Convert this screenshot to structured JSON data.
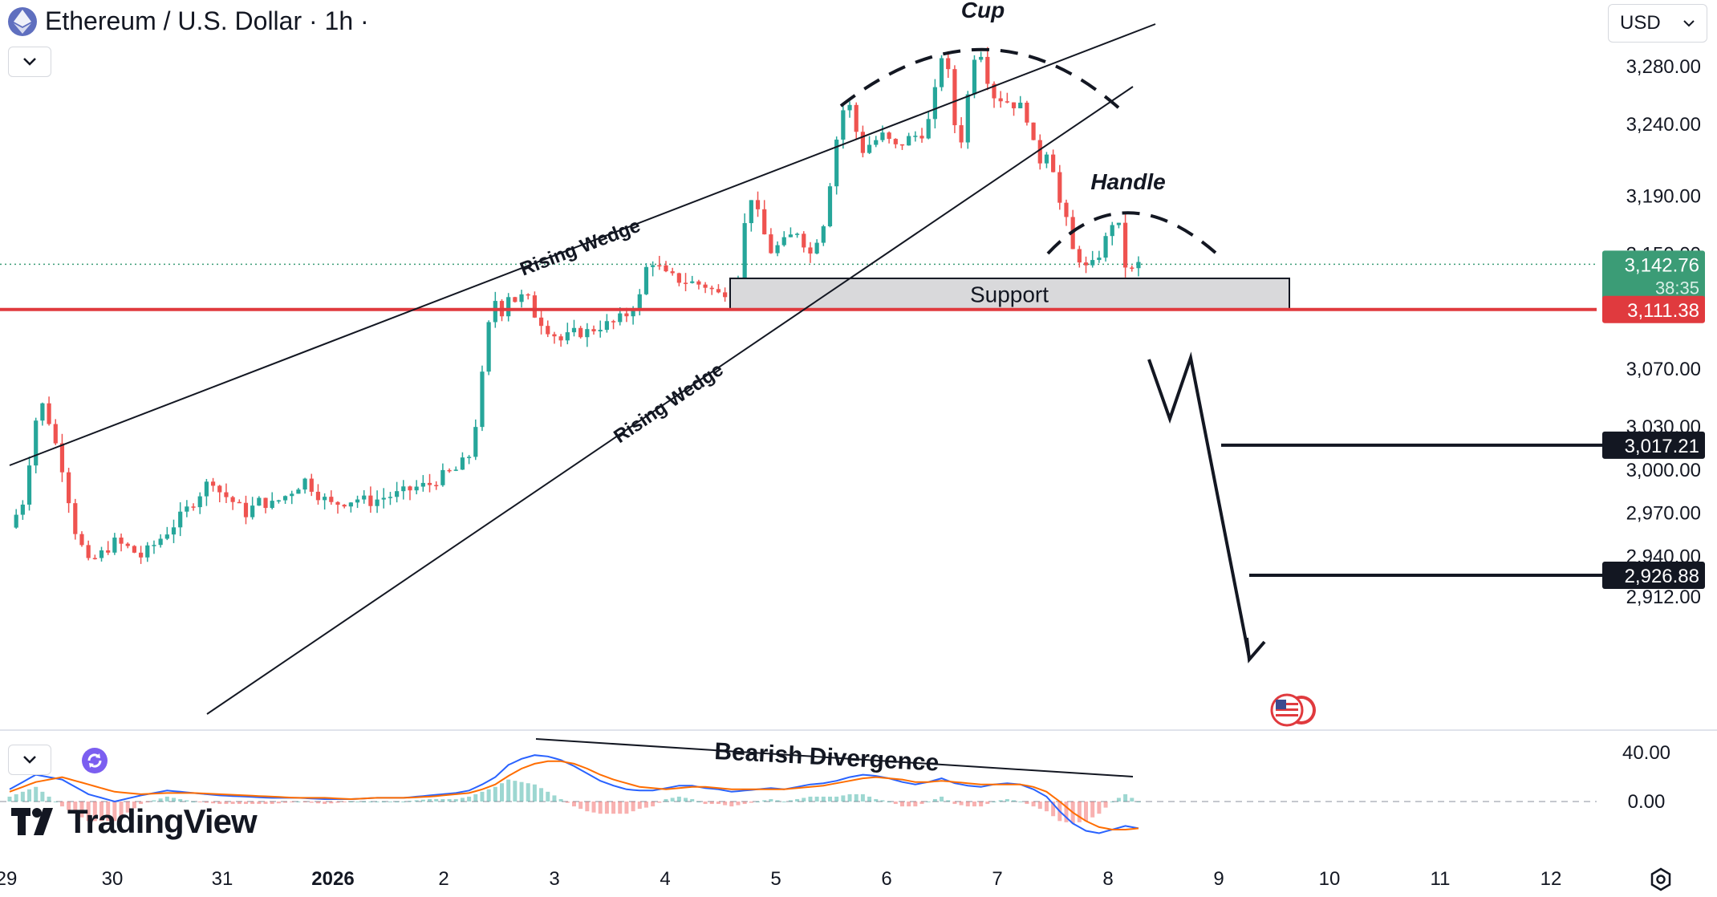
{
  "header": {
    "symbol_title": "Ethereum / U.S. Dollar · 1h ·",
    "currency_label": "USD"
  },
  "icons": {
    "symbol_icon": "ethereum-icon",
    "collapse_icon": "chevron-down-icon",
    "currency_dropdown_icon": "chevron-down-icon",
    "refresh_icon": "refresh-icon",
    "event_icon": "us-flag-icon",
    "settings_icon": "gear-icon"
  },
  "branding": {
    "logo_text": "TradingView"
  },
  "colors": {
    "bull": "#26a69a",
    "bear": "#ef5350",
    "support_line": "#e03a3e",
    "current_price_badge": "#3b9c76",
    "macd_line": "#2962ff",
    "signal_line": "#ff6d00"
  },
  "chart_data": {
    "type": "candlestick",
    "title": "Ethereum / U.S. Dollar · 1h ·",
    "y_axis": {
      "ticks": [
        "3,280.00",
        "3,240.00",
        "3,190.00",
        "3,150.00",
        "3,070.00",
        "3,030.00",
        "3,000.00",
        "2,970.00",
        "2,940.00",
        "2,912.00"
      ]
    },
    "x_axis": {
      "ticks": [
        "29",
        "30",
        "31",
        "2026",
        "2",
        "3",
        "4",
        "5",
        "6",
        "7",
        "8",
        "9",
        "10",
        "11",
        "12"
      ]
    },
    "price_badges": {
      "current_price": "3,142.76",
      "countdown": "38:35",
      "support_price": "3,111.38",
      "target1_price": "3,017.21",
      "target2_price": "2,926.88"
    },
    "levels": {
      "current": 3142.76,
      "support": 3111.38,
      "target1": 3017.21,
      "target2": 2926.88,
      "support_zone": [
        3111.38,
        3133
      ]
    },
    "annotations": {
      "cup": "Cup",
      "handle": "Handle",
      "wedge_upper": "Rising Wedge",
      "wedge_lower": "Rising Wedge",
      "support_zone": "Support",
      "divergence": "Bearish Divergence"
    },
    "macd_panel": {
      "ticks": [
        "40.00",
        "0.00"
      ]
    },
    "price_path": [
      [
        0,
        2960
      ],
      [
        2,
        2978
      ],
      [
        4,
        3035
      ],
      [
        5,
        3045
      ],
      [
        6,
        3034
      ],
      [
        8,
        3002
      ],
      [
        10,
        2958
      ],
      [
        12,
        2935
      ],
      [
        14,
        2942
      ],
      [
        16,
        2950
      ],
      [
        18,
        2946
      ],
      [
        20,
        2940
      ],
      [
        22,
        2948
      ],
      [
        25,
        2962
      ],
      [
        28,
        2978
      ],
      [
        30,
        2990
      ],
      [
        31,
        2993
      ],
      [
        32,
        2985
      ],
      [
        34,
        2978
      ],
      [
        36,
        2970
      ],
      [
        38,
        2978
      ],
      [
        40,
        2976
      ],
      [
        42,
        2982
      ],
      [
        45,
        2993
      ],
      [
        47,
        2983
      ],
      [
        49,
        2976
      ],
      [
        51,
        2978
      ],
      [
        53,
        2980
      ],
      [
        55,
        2978
      ],
      [
        57,
        2981
      ],
      [
        59,
        2983
      ],
      [
        62,
        2988
      ],
      [
        64,
        2990
      ],
      [
        66,
        2996
      ],
      [
        68,
        3000
      ],
      [
        70,
        3010
      ],
      [
        71,
        3032
      ],
      [
        72,
        3065
      ],
      [
        73,
        3100
      ],
      [
        74,
        3118
      ],
      [
        75,
        3110
      ],
      [
        76,
        3122
      ],
      [
        77,
        3118
      ],
      [
        78,
        3120
      ],
      [
        79,
        3118
      ],
      [
        80,
        3108
      ],
      [
        82,
        3098
      ],
      [
        84,
        3090
      ],
      [
        86,
        3095
      ],
      [
        88,
        3096
      ],
      [
        90,
        3100
      ],
      [
        92,
        3102
      ],
      [
        94,
        3108
      ],
      [
        96,
        3120
      ],
      [
        97,
        3140
      ],
      [
        98,
        3145
      ],
      [
        100,
        3135
      ],
      [
        102,
        3132
      ],
      [
        104,
        3130
      ],
      [
        106,
        3128
      ],
      [
        108,
        3122
      ],
      [
        110,
        3126
      ],
      [
        111,
        3136
      ],
      [
        112,
        3170
      ],
      [
        113,
        3190
      ],
      [
        114,
        3177
      ],
      [
        115,
        3163
      ],
      [
        116,
        3152
      ],
      [
        118,
        3158
      ],
      [
        120,
        3166
      ],
      [
        122,
        3150
      ],
      [
        124,
        3172
      ],
      [
        125,
        3200
      ],
      [
        126,
        3230
      ],
      [
        127,
        3250
      ],
      [
        128,
        3252
      ],
      [
        129,
        3235
      ],
      [
        130,
        3222
      ],
      [
        131,
        3226
      ],
      [
        133,
        3232
      ],
      [
        135,
        3224
      ],
      [
        137,
        3230
      ],
      [
        139,
        3234
      ],
      [
        140,
        3242
      ],
      [
        141,
        3262
      ],
      [
        142,
        3288
      ],
      [
        143,
        3275
      ],
      [
        144,
        3240
      ],
      [
        145,
        3230
      ],
      [
        146,
        3260
      ],
      [
        147,
        3288
      ],
      [
        148,
        3290
      ],
      [
        149,
        3272
      ],
      [
        150,
        3260
      ],
      [
        152,
        3256
      ],
      [
        154,
        3252
      ],
      [
        155,
        3245
      ],
      [
        156,
        3225
      ],
      [
        157,
        3215
      ],
      [
        158,
        3222
      ],
      [
        159,
        3210
      ],
      [
        160,
        3185
      ],
      [
        161,
        3172
      ],
      [
        162,
        3152
      ],
      [
        163,
        3147
      ],
      [
        164,
        3140
      ],
      [
        165,
        3142
      ],
      [
        166,
        3150
      ],
      [
        167,
        3160
      ],
      [
        168,
        3172
      ],
      [
        169,
        3168
      ],
      [
        170,
        3142
      ],
      [
        171,
        3138
      ],
      [
        172,
        3142.76
      ]
    ],
    "macd_path": [
      [
        0,
        10
      ],
      [
        4,
        22
      ],
      [
        8,
        18
      ],
      [
        12,
        6
      ],
      [
        16,
        0
      ],
      [
        20,
        5
      ],
      [
        24,
        9
      ],
      [
        28,
        7
      ],
      [
        32,
        5
      ],
      [
        36,
        4
      ],
      [
        40,
        3
      ],
      [
        44,
        3
      ],
      [
        48,
        2
      ],
      [
        52,
        2
      ],
      [
        56,
        3
      ],
      [
        60,
        3
      ],
      [
        64,
        5
      ],
      [
        68,
        7
      ],
      [
        70,
        9
      ],
      [
        72,
        14
      ],
      [
        74,
        20
      ],
      [
        76,
        30
      ],
      [
        78,
        35
      ],
      [
        80,
        38
      ],
      [
        82,
        37
      ],
      [
        84,
        34
      ],
      [
        86,
        29
      ],
      [
        88,
        23
      ],
      [
        90,
        17
      ],
      [
        92,
        13
      ],
      [
        94,
        10
      ],
      [
        96,
        9
      ],
      [
        98,
        9
      ],
      [
        100,
        11
      ],
      [
        102,
        13
      ],
      [
        104,
        13
      ],
      [
        106,
        11
      ],
      [
        108,
        10
      ],
      [
        110,
        8
      ],
      [
        112,
        9
      ],
      [
        114,
        10
      ],
      [
        116,
        11
      ],
      [
        118,
        10
      ],
      [
        120,
        12
      ],
      [
        122,
        14
      ],
      [
        124,
        15
      ],
      [
        126,
        17
      ],
      [
        128,
        20
      ],
      [
        130,
        22
      ],
      [
        132,
        21
      ],
      [
        134,
        19
      ],
      [
        136,
        16
      ],
      [
        138,
        14
      ],
      [
        140,
        16
      ],
      [
        142,
        19
      ],
      [
        144,
        15
      ],
      [
        146,
        13
      ],
      [
        148,
        12
      ],
      [
        150,
        14
      ],
      [
        152,
        15
      ],
      [
        154,
        14
      ],
      [
        156,
        10
      ],
      [
        158,
        4
      ],
      [
        160,
        -8
      ],
      [
        162,
        -18
      ],
      [
        164,
        -24
      ],
      [
        166,
        -26
      ],
      [
        168,
        -23
      ],
      [
        170,
        -20
      ],
      [
        172,
        -22
      ]
    ],
    "signal_path": [
      [
        0,
        8
      ],
      [
        4,
        16
      ],
      [
        8,
        20
      ],
      [
        12,
        14
      ],
      [
        16,
        8
      ],
      [
        20,
        6
      ],
      [
        24,
        7
      ],
      [
        28,
        7
      ],
      [
        32,
        6
      ],
      [
        36,
        5
      ],
      [
        40,
        4
      ],
      [
        44,
        3
      ],
      [
        48,
        3
      ],
      [
        52,
        2
      ],
      [
        56,
        3
      ],
      [
        60,
        3
      ],
      [
        64,
        4
      ],
      [
        68,
        6
      ],
      [
        70,
        7
      ],
      [
        72,
        10
      ],
      [
        74,
        14
      ],
      [
        76,
        21
      ],
      [
        78,
        27
      ],
      [
        80,
        31
      ],
      [
        82,
        33
      ],
      [
        84,
        33
      ],
      [
        86,
        31
      ],
      [
        88,
        27
      ],
      [
        90,
        22
      ],
      [
        92,
        18
      ],
      [
        94,
        15
      ],
      [
        96,
        12
      ],
      [
        98,
        11
      ],
      [
        100,
        10
      ],
      [
        102,
        11
      ],
      [
        104,
        12
      ],
      [
        106,
        12
      ],
      [
        108,
        11
      ],
      [
        110,
        10
      ],
      [
        112,
        10
      ],
      [
        114,
        10
      ],
      [
        116,
        10
      ],
      [
        118,
        10
      ],
      [
        120,
        11
      ],
      [
        122,
        12
      ],
      [
        124,
        13
      ],
      [
        126,
        15
      ],
      [
        128,
        17
      ],
      [
        130,
        19
      ],
      [
        132,
        20
      ],
      [
        134,
        19
      ],
      [
        136,
        18
      ],
      [
        138,
        16
      ],
      [
        140,
        16
      ],
      [
        142,
        17
      ],
      [
        144,
        16
      ],
      [
        146,
        15
      ],
      [
        148,
        14
      ],
      [
        150,
        14
      ],
      [
        152,
        14
      ],
      [
        154,
        14
      ],
      [
        156,
        12
      ],
      [
        158,
        8
      ],
      [
        160,
        0
      ],
      [
        162,
        -9
      ],
      [
        164,
        -16
      ],
      [
        166,
        -21
      ],
      [
        168,
        -23
      ],
      [
        170,
        -23
      ],
      [
        172,
        -22
      ]
    ]
  }
}
